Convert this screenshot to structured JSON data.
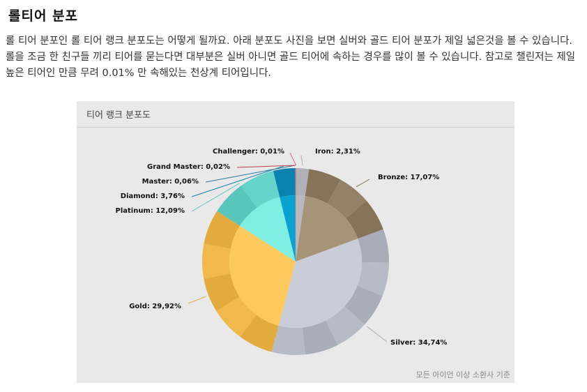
{
  "heading": "롤티어 분포",
  "paragraph": "롤 티어 분포인 롤 티어 랭크 분포도는 어떻게 될까요. 아래 분포도 사진을 보면 실버와 골드 티어 분포가 제일 넓은것을 볼 수 있습니다. 롤을 조금 한 친구들 끼리 티어를 묻는다면 대부분은 실버 아니면 골드 티어에 속하는 경우를 많이 볼 수 있습니다. 참고로 챌린저는 제일 높은 티어인 만큼 무려 0.01% 만 속해있는 천상계 티어입니다.",
  "card": {
    "title": "티어 랭크 분포도",
    "note": "모든 아이언 이상 소환사 기준"
  },
  "chart_data": {
    "type": "pie",
    "title": "티어 랭크 분포도",
    "slices": [
      {
        "name": "Iron",
        "value": 2.31,
        "label": "Iron: 2,31%",
        "color": "#b8b8bd",
        "outer": "#b0b0b6"
      },
      {
        "name": "Bronze",
        "value": 17.07,
        "label": "Bronze: 17,07%",
        "color": "#a69478",
        "outer": "#857459"
      },
      {
        "name": "Silver",
        "value": 34.74,
        "label": "Silver: 34,74%",
        "color": "#c9cdd8",
        "outer": "#a9adb7"
      },
      {
        "name": "Gold",
        "value": 29.92,
        "label": "Gold: 29,92%",
        "color": "#fec95c",
        "outer": "#e3ab3e"
      },
      {
        "name": "Platinum",
        "value": 12.09,
        "label": "Platinum: 12,09%",
        "color": "#7feee3",
        "outer": "#59c6bd"
      },
      {
        "name": "Diamond",
        "value": 3.76,
        "label": "Diamond: 3,76%",
        "color": "#0aa2d1",
        "outer": "#0a82b0"
      },
      {
        "name": "Master",
        "value": 0.06,
        "label": "Master: 0,06%",
        "color": "#1f8fb8",
        "outer": "#2d7aa0"
      },
      {
        "name": "Grand Master",
        "value": 0.02,
        "label": "Grand Master: 0,02%",
        "color": "#e0475f",
        "outer": "#c23a50"
      },
      {
        "name": "Challenger",
        "value": 0.01,
        "label": "Challenger: 0,01%",
        "color": "#f07fa0",
        "outer": "#e06a8e"
      }
    ],
    "legend": "none"
  }
}
